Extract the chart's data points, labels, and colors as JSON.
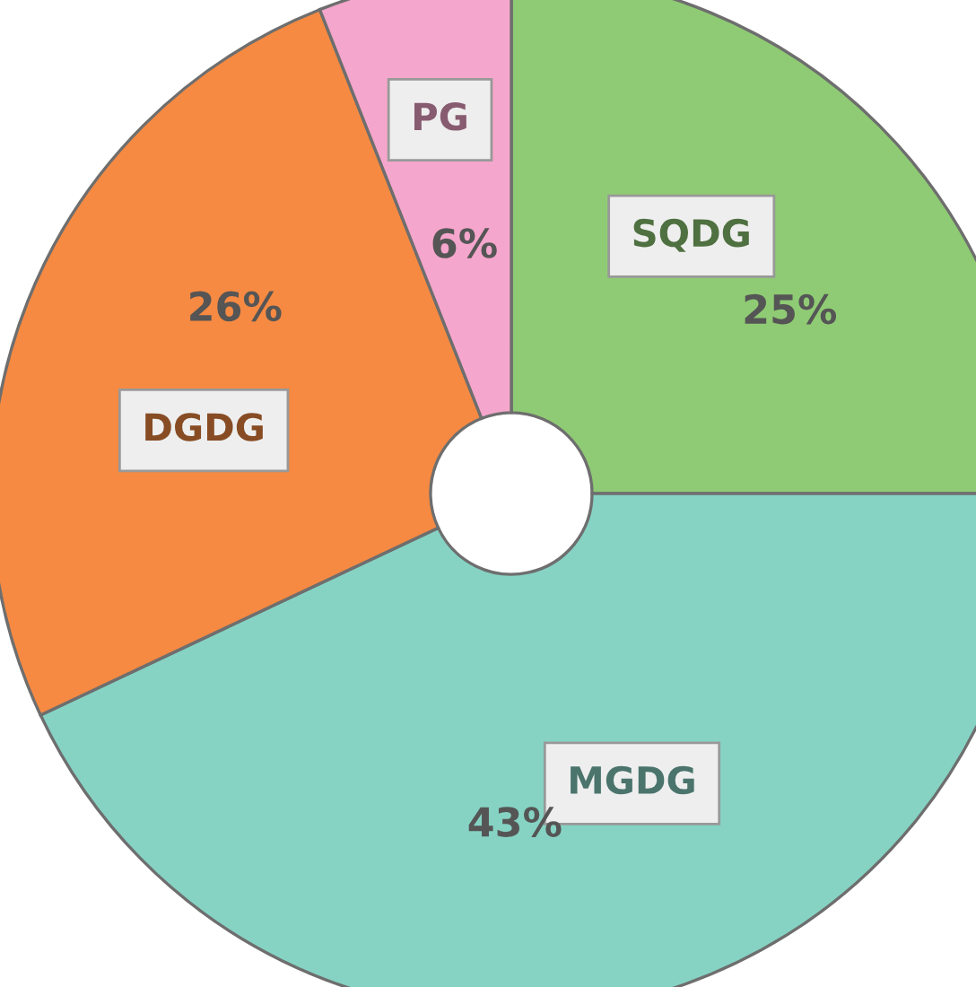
{
  "chart_data": {
    "type": "donut",
    "categories": [
      "SQDG",
      "MGDG",
      "DGDG",
      "PG"
    ],
    "values": [
      25,
      43,
      26,
      6
    ],
    "value_labels": [
      "25%",
      "43%",
      "26%",
      "6%"
    ],
    "colors": [
      "#8fcb74",
      "#86d3c4",
      "#f68a42",
      "#f5a6cc"
    ]
  }
}
